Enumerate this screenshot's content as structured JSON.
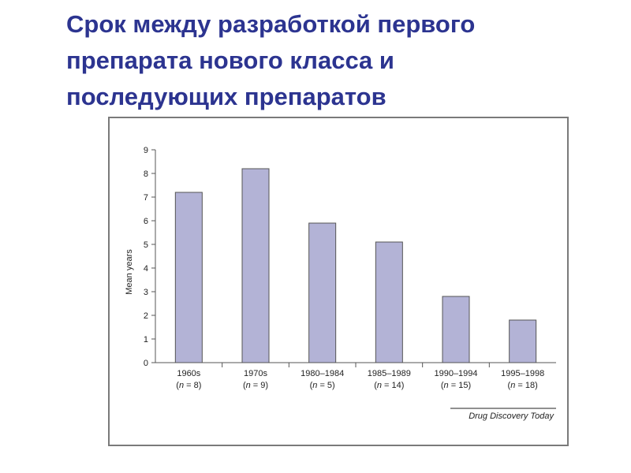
{
  "slide": {
    "title_lines": [
      "Срок между разработкой первого",
      "препарата нового класса и",
      "последующих препаратов"
    ]
  },
  "colors": {
    "title": "#2c3490",
    "bar_fill": "#b3b3d6",
    "bar_stroke": "#555555",
    "axis": "#555555"
  },
  "chart_data": {
    "type": "bar",
    "ylabel": "Mean years",
    "ylim": [
      0,
      9
    ],
    "yticks": [
      "0",
      "1",
      "2",
      "3",
      "4",
      "5",
      "6",
      "7",
      "8",
      "9"
    ],
    "categories": [
      "1960s",
      "1970s",
      "1980–1984",
      "1985–1989",
      "1990–1994",
      "1995–1998"
    ],
    "n_labels": [
      {
        "n_letter": "n",
        "rest": " = 8)"
      },
      {
        "n_letter": "n",
        "rest": " = 9)"
      },
      {
        "n_letter": "n",
        "rest": " = 5)"
      },
      {
        "n_letter": "n",
        "rest": " = 14)"
      },
      {
        "n_letter": "n",
        "rest": " = 15)"
      },
      {
        "n_letter": "n",
        "rest": " = 18)"
      }
    ],
    "values": [
      7.2,
      8.2,
      5.9,
      5.1,
      2.8,
      1.8
    ],
    "grid": false,
    "source": "Drug Discovery Today"
  }
}
